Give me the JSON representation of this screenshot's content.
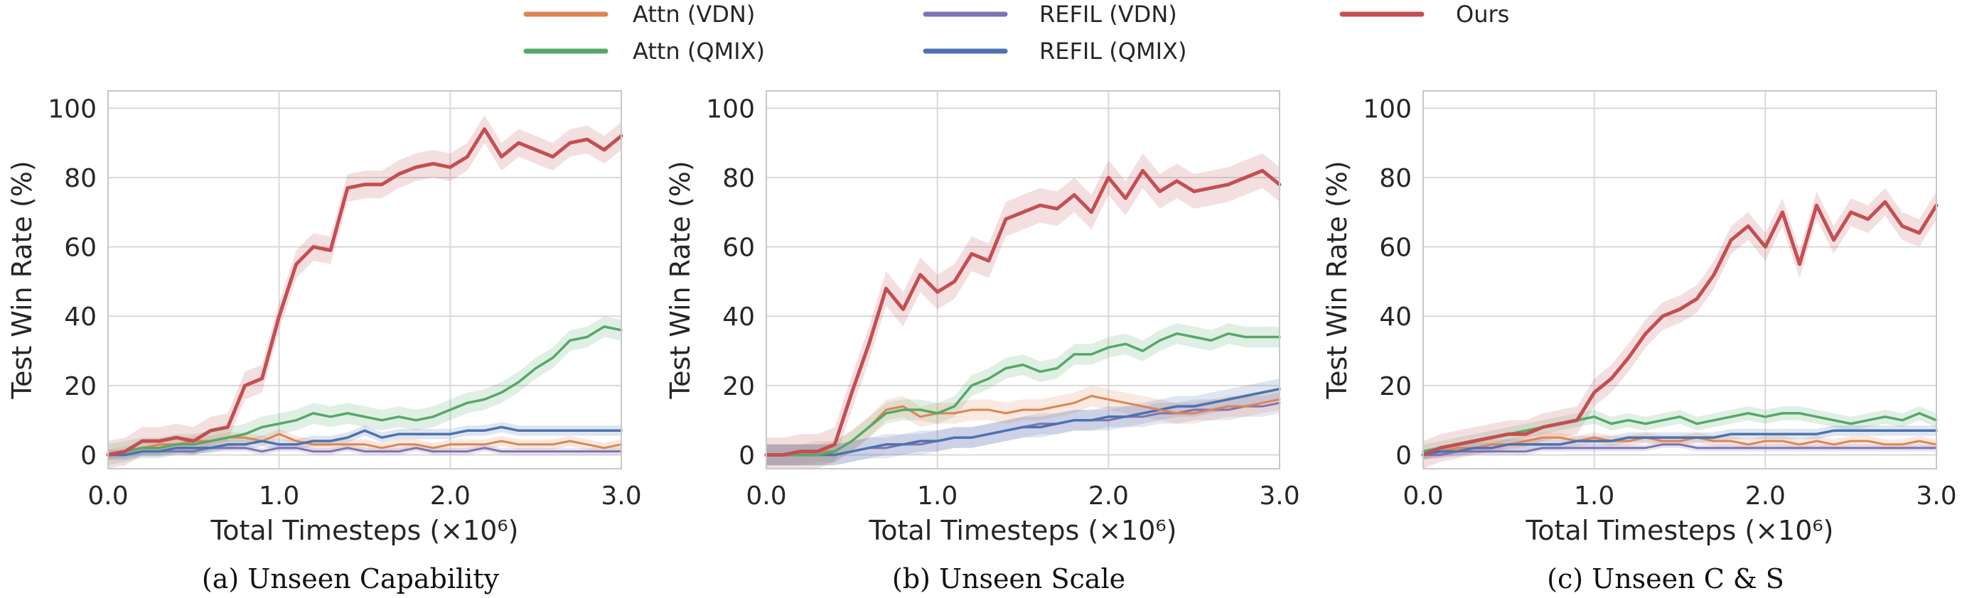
{
  "legend": [
    {
      "name": "Attn (VDN)",
      "color": "#dd8452"
    },
    {
      "name": "REFIL (VDN)",
      "color": "#8172b3"
    },
    {
      "name": "Ours",
      "color": "#c44e52"
    },
    {
      "name": "Attn (QMIX)",
      "color": "#55a868"
    },
    {
      "name": "REFIL (QMIX)",
      "color": "#4c72b0"
    }
  ],
  "chart_data": [
    {
      "type": "line",
      "caption": "(a) Unseen Capability",
      "xlabel": "Total Timesteps (×10⁶)",
      "ylabel": "Test Win Rate (%)",
      "xlim": [
        0,
        3.0
      ],
      "ylim": [
        -4,
        105
      ],
      "xticks": [
        "0.0",
        "1.0",
        "2.0",
        "3.0"
      ],
      "yticks": [
        "0",
        "20",
        "40",
        "60",
        "80",
        "100"
      ],
      "grid": true,
      "x": [
        0.0,
        0.1,
        0.2,
        0.3,
        0.4,
        0.5,
        0.6,
        0.7,
        0.8,
        0.9,
        1.0,
        1.1,
        1.2,
        1.3,
        1.4,
        1.5,
        1.6,
        1.7,
        1.8,
        1.9,
        2.0,
        2.1,
        2.2,
        2.3,
        2.4,
        2.5,
        2.6,
        2.7,
        2.8,
        2.9,
        3.0
      ],
      "series": [
        {
          "name": "Ours",
          "color": "#c44e52",
          "width": 5,
          "band": 4,
          "values": [
            0,
            1,
            4,
            4,
            5,
            4,
            7,
            8,
            20,
            22,
            40,
            55,
            60,
            59,
            77,
            78,
            78,
            81,
            83,
            84,
            83,
            86,
            94,
            86,
            90,
            88,
            86,
            90,
            91,
            88,
            92
          ]
        },
        {
          "name": "Attn (QMIX)",
          "color": "#55a868",
          "width": 3.5,
          "band": 3,
          "values": [
            0,
            1,
            2,
            2,
            3,
            3,
            4,
            5,
            6,
            8,
            9,
            10,
            12,
            11,
            12,
            11,
            10,
            11,
            10,
            11,
            13,
            15,
            16,
            18,
            21,
            25,
            28,
            33,
            34,
            37,
            36
          ]
        },
        {
          "name": "REFIL (QMIX)",
          "color": "#4c72b0",
          "width": 3.5,
          "band": 1.5,
          "values": [
            0,
            0,
            1,
            1,
            2,
            2,
            2,
            3,
            3,
            4,
            3,
            3,
            4,
            4,
            5,
            7,
            5,
            6,
            6,
            6,
            6,
            7,
            7,
            8,
            7,
            7,
            7,
            7,
            7,
            7,
            7
          ]
        },
        {
          "name": "Attn (VDN)",
          "color": "#dd8452",
          "width": 3,
          "band": 1.5,
          "values": [
            0,
            1,
            2,
            3,
            3,
            4,
            4,
            5,
            5,
            4,
            6,
            4,
            3,
            3,
            3,
            3,
            2,
            3,
            3,
            2,
            3,
            3,
            3,
            4,
            3,
            3,
            3,
            4,
            3,
            2,
            3
          ]
        },
        {
          "name": "REFIL (VDN)",
          "color": "#8172b3",
          "width": 3,
          "band": 1,
          "values": [
            0,
            0,
            1,
            1,
            1,
            1,
            2,
            2,
            2,
            1,
            2,
            2,
            1,
            1,
            2,
            1,
            1,
            1,
            2,
            1,
            1,
            1,
            2,
            1,
            1,
            1,
            1,
            1,
            1,
            1,
            1
          ]
        }
      ]
    },
    {
      "type": "line",
      "caption": "(b) Unseen Scale",
      "xlabel": "Total Timesteps (×10⁶)",
      "ylabel": "Test Win Rate (%)",
      "xlim": [
        0,
        3.0
      ],
      "ylim": [
        -4,
        105
      ],
      "xticks": [
        "0.0",
        "1.0",
        "2.0",
        "3.0"
      ],
      "yticks": [
        "0",
        "20",
        "40",
        "60",
        "80",
        "100"
      ],
      "grid": true,
      "x": [
        0.0,
        0.1,
        0.2,
        0.3,
        0.4,
        0.5,
        0.6,
        0.7,
        0.8,
        0.9,
        1.0,
        1.1,
        1.2,
        1.3,
        1.4,
        1.5,
        1.6,
        1.7,
        1.8,
        1.9,
        2.0,
        2.1,
        2.2,
        2.3,
        2.4,
        2.5,
        2.6,
        2.7,
        2.8,
        2.9,
        3.0
      ],
      "series": [
        {
          "name": "Ours",
          "color": "#c44e52",
          "width": 5,
          "band": 5,
          "values": [
            0,
            0,
            1,
            1,
            3,
            18,
            32,
            48,
            42,
            52,
            47,
            50,
            58,
            56,
            68,
            70,
            72,
            71,
            75,
            70,
            80,
            74,
            82,
            76,
            79,
            76,
            77,
            78,
            80,
            82,
            78
          ]
        },
        {
          "name": "Attn (QMIX)",
          "color": "#55a868",
          "width": 3.5,
          "band": 3,
          "values": [
            0,
            0,
            0,
            0,
            1,
            4,
            8,
            12,
            13,
            13,
            12,
            14,
            20,
            22,
            25,
            26,
            24,
            25,
            29,
            29,
            31,
            32,
            30,
            33,
            35,
            34,
            33,
            35,
            34,
            34,
            34
          ]
        },
        {
          "name": "Attn (VDN)",
          "color": "#dd8452",
          "width": 3,
          "band": 3,
          "values": [
            0,
            0,
            0,
            1,
            1,
            4,
            8,
            13,
            14,
            11,
            12,
            12,
            13,
            13,
            12,
            13,
            13,
            14,
            15,
            17,
            16,
            15,
            14,
            13,
            12,
            12,
            13,
            14,
            14,
            15,
            16
          ]
        },
        {
          "name": "REFIL (QMIX)",
          "color": "#4c72b0",
          "width": 3.5,
          "band": 3,
          "values": [
            0,
            0,
            0,
            0,
            0,
            1,
            2,
            3,
            3,
            4,
            4,
            5,
            5,
            6,
            7,
            8,
            8,
            9,
            10,
            10,
            11,
            11,
            12,
            13,
            14,
            14,
            15,
            16,
            17,
            18,
            19
          ]
        },
        {
          "name": "REFIL (VDN)",
          "color": "#8172b3",
          "width": 3,
          "band": 3,
          "values": [
            0,
            0,
            0,
            0,
            0,
            1,
            2,
            2,
            3,
            3,
            4,
            5,
            5,
            6,
            7,
            8,
            9,
            9,
            10,
            10,
            10,
            11,
            11,
            12,
            12,
            13,
            13,
            13,
            14,
            14,
            15
          ]
        }
      ]
    },
    {
      "type": "line",
      "caption": "(c) Unseen C & S",
      "xlabel": "Total Timesteps (×10⁶)",
      "ylabel": "Test Win Rate (%)",
      "xlim": [
        0,
        3.0
      ],
      "ylim": [
        -4,
        105
      ],
      "xticks": [
        "0.0",
        "1.0",
        "2.0",
        "3.0"
      ],
      "yticks": [
        "0",
        "20",
        "40",
        "60",
        "80",
        "100"
      ],
      "grid": true,
      "x": [
        0.0,
        0.1,
        0.2,
        0.3,
        0.4,
        0.5,
        0.6,
        0.7,
        0.8,
        0.9,
        1.0,
        1.1,
        1.2,
        1.3,
        1.4,
        1.5,
        1.6,
        1.7,
        1.8,
        1.9,
        2.0,
        2.1,
        2.2,
        2.3,
        2.4,
        2.5,
        2.6,
        2.7,
        2.8,
        2.9,
        3.0
      ],
      "series": [
        {
          "name": "Ours",
          "color": "#c44e52",
          "width": 5,
          "band": 4,
          "values": [
            0,
            2,
            3,
            4,
            5,
            6,
            6,
            8,
            9,
            10,
            18,
            22,
            28,
            35,
            40,
            42,
            45,
            52,
            62,
            66,
            60,
            70,
            55,
            72,
            62,
            70,
            68,
            73,
            66,
            64,
            72
          ]
        },
        {
          "name": "Attn (QMIX)",
          "color": "#55a868",
          "width": 3.5,
          "band": 2,
          "values": [
            1,
            2,
            3,
            4,
            5,
            6,
            7,
            8,
            9,
            10,
            11,
            9,
            10,
            9,
            10,
            11,
            9,
            10,
            11,
            12,
            11,
            12,
            12,
            11,
            10,
            9,
            10,
            11,
            10,
            12,
            10
          ]
        },
        {
          "name": "REFIL (QMIX)",
          "color": "#4c72b0",
          "width": 3.5,
          "band": 1.5,
          "values": [
            0,
            1,
            1,
            2,
            2,
            3,
            3,
            3,
            3,
            4,
            4,
            4,
            5,
            5,
            5,
            5,
            5,
            5,
            6,
            6,
            6,
            6,
            6,
            6,
            7,
            7,
            7,
            7,
            7,
            7,
            7
          ]
        },
        {
          "name": "Attn (VDN)",
          "color": "#dd8452",
          "width": 3,
          "band": 1.5,
          "values": [
            0,
            1,
            2,
            2,
            3,
            3,
            4,
            5,
            5,
            4,
            5,
            4,
            4,
            5,
            4,
            4,
            5,
            4,
            4,
            3,
            4,
            4,
            3,
            4,
            3,
            4,
            4,
            3,
            3,
            4,
            3
          ]
        },
        {
          "name": "REFIL (VDN)",
          "color": "#8172b3",
          "width": 3,
          "band": 1,
          "values": [
            0,
            0,
            1,
            1,
            1,
            1,
            1,
            2,
            2,
            2,
            2,
            2,
            2,
            2,
            3,
            3,
            2,
            2,
            2,
            2,
            2,
            2,
            2,
            2,
            2,
            2,
            2,
            2,
            2,
            2,
            2
          ]
        }
      ]
    }
  ]
}
